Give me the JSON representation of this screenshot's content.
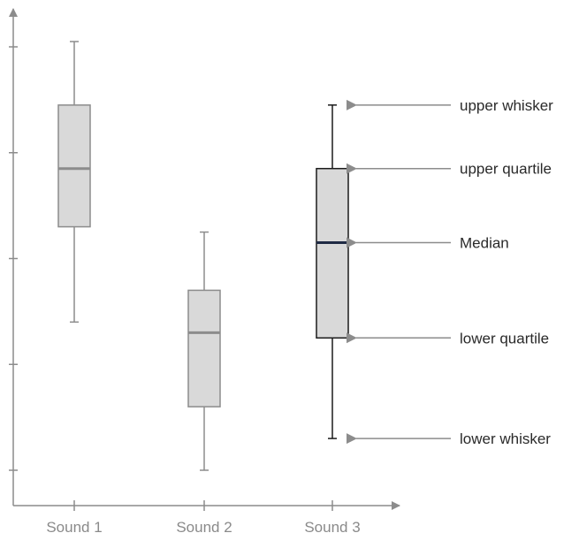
{
  "chart_data": {
    "type": "box",
    "categories": [
      "Sound 1",
      "Sound 2",
      "Sound 3"
    ],
    "boxes": [
      {
        "whisker_low": 1.4,
        "q1": 2.3,
        "median": 2.85,
        "q3": 3.45,
        "whisker_high": 4.05
      },
      {
        "whisker_low": 0.0,
        "q1": 0.6,
        "median": 1.3,
        "q3": 1.7,
        "whisker_high": 2.25
      },
      {
        "whisker_low": 0.3,
        "q1": 1.25,
        "median": 2.15,
        "q3": 2.85,
        "whisker_high": 3.45
      }
    ],
    "ylim": [
      0,
      4.2
    ],
    "y_ticks": [
      0,
      1,
      2,
      3,
      4
    ],
    "highlighted_index": 2,
    "annotations": [
      {
        "label": "upper whisker",
        "points_to": "whisker_high"
      },
      {
        "label": "upper quartile",
        "points_to": "q3"
      },
      {
        "label": "Median",
        "points_to": "median"
      },
      {
        "label": "lower quartile",
        "points_to": "q1"
      },
      {
        "label": "lower whisker",
        "points_to": "whisker_low"
      }
    ],
    "colors": {
      "axis": "#8c8c8c",
      "box_fill": "#d9d9d9",
      "box_edge": "#8c8c8c",
      "box_edge_highlight": "#1a1a1a",
      "median": "#8c8c8c",
      "median_highlight": "#1f2a44",
      "arrow": "#8c8c8c"
    }
  }
}
